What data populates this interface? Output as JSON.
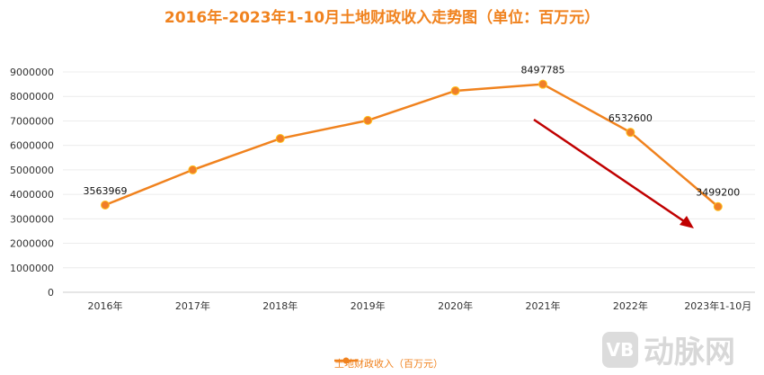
{
  "chart_data": {
    "type": "line",
    "title": "2016年-2023年1-10月土地财政收入走势图（单位：百万元）",
    "categories": [
      "2016年",
      "2017年",
      "2018年",
      "2019年",
      "2020年",
      "2021年",
      "2022年",
      "2023年1-10月"
    ],
    "series": [
      {
        "name": "土地财政收入（百万元）",
        "values": [
          3563969,
          5000000,
          6280000,
          7020000,
          8230000,
          8497785,
          6532600,
          3499200
        ],
        "color": "#F0821E"
      }
    ],
    "data_labels": {
      "0": "3563969",
      "5": "8497785",
      "6": "6532600",
      "7": "3499200"
    },
    "ylim": [
      0,
      9000000
    ],
    "yticks": [
      0,
      1000000,
      2000000,
      3000000,
      4000000,
      5000000,
      6000000,
      7000000,
      8000000,
      9000000
    ],
    "grid": true,
    "legend": "bottom-center",
    "annotation": {
      "type": "arrow",
      "color": "#C00000",
      "meaning": "downward trend 2021-2023"
    }
  },
  "watermark": {
    "logo": "VB",
    "text": "动脉网"
  }
}
